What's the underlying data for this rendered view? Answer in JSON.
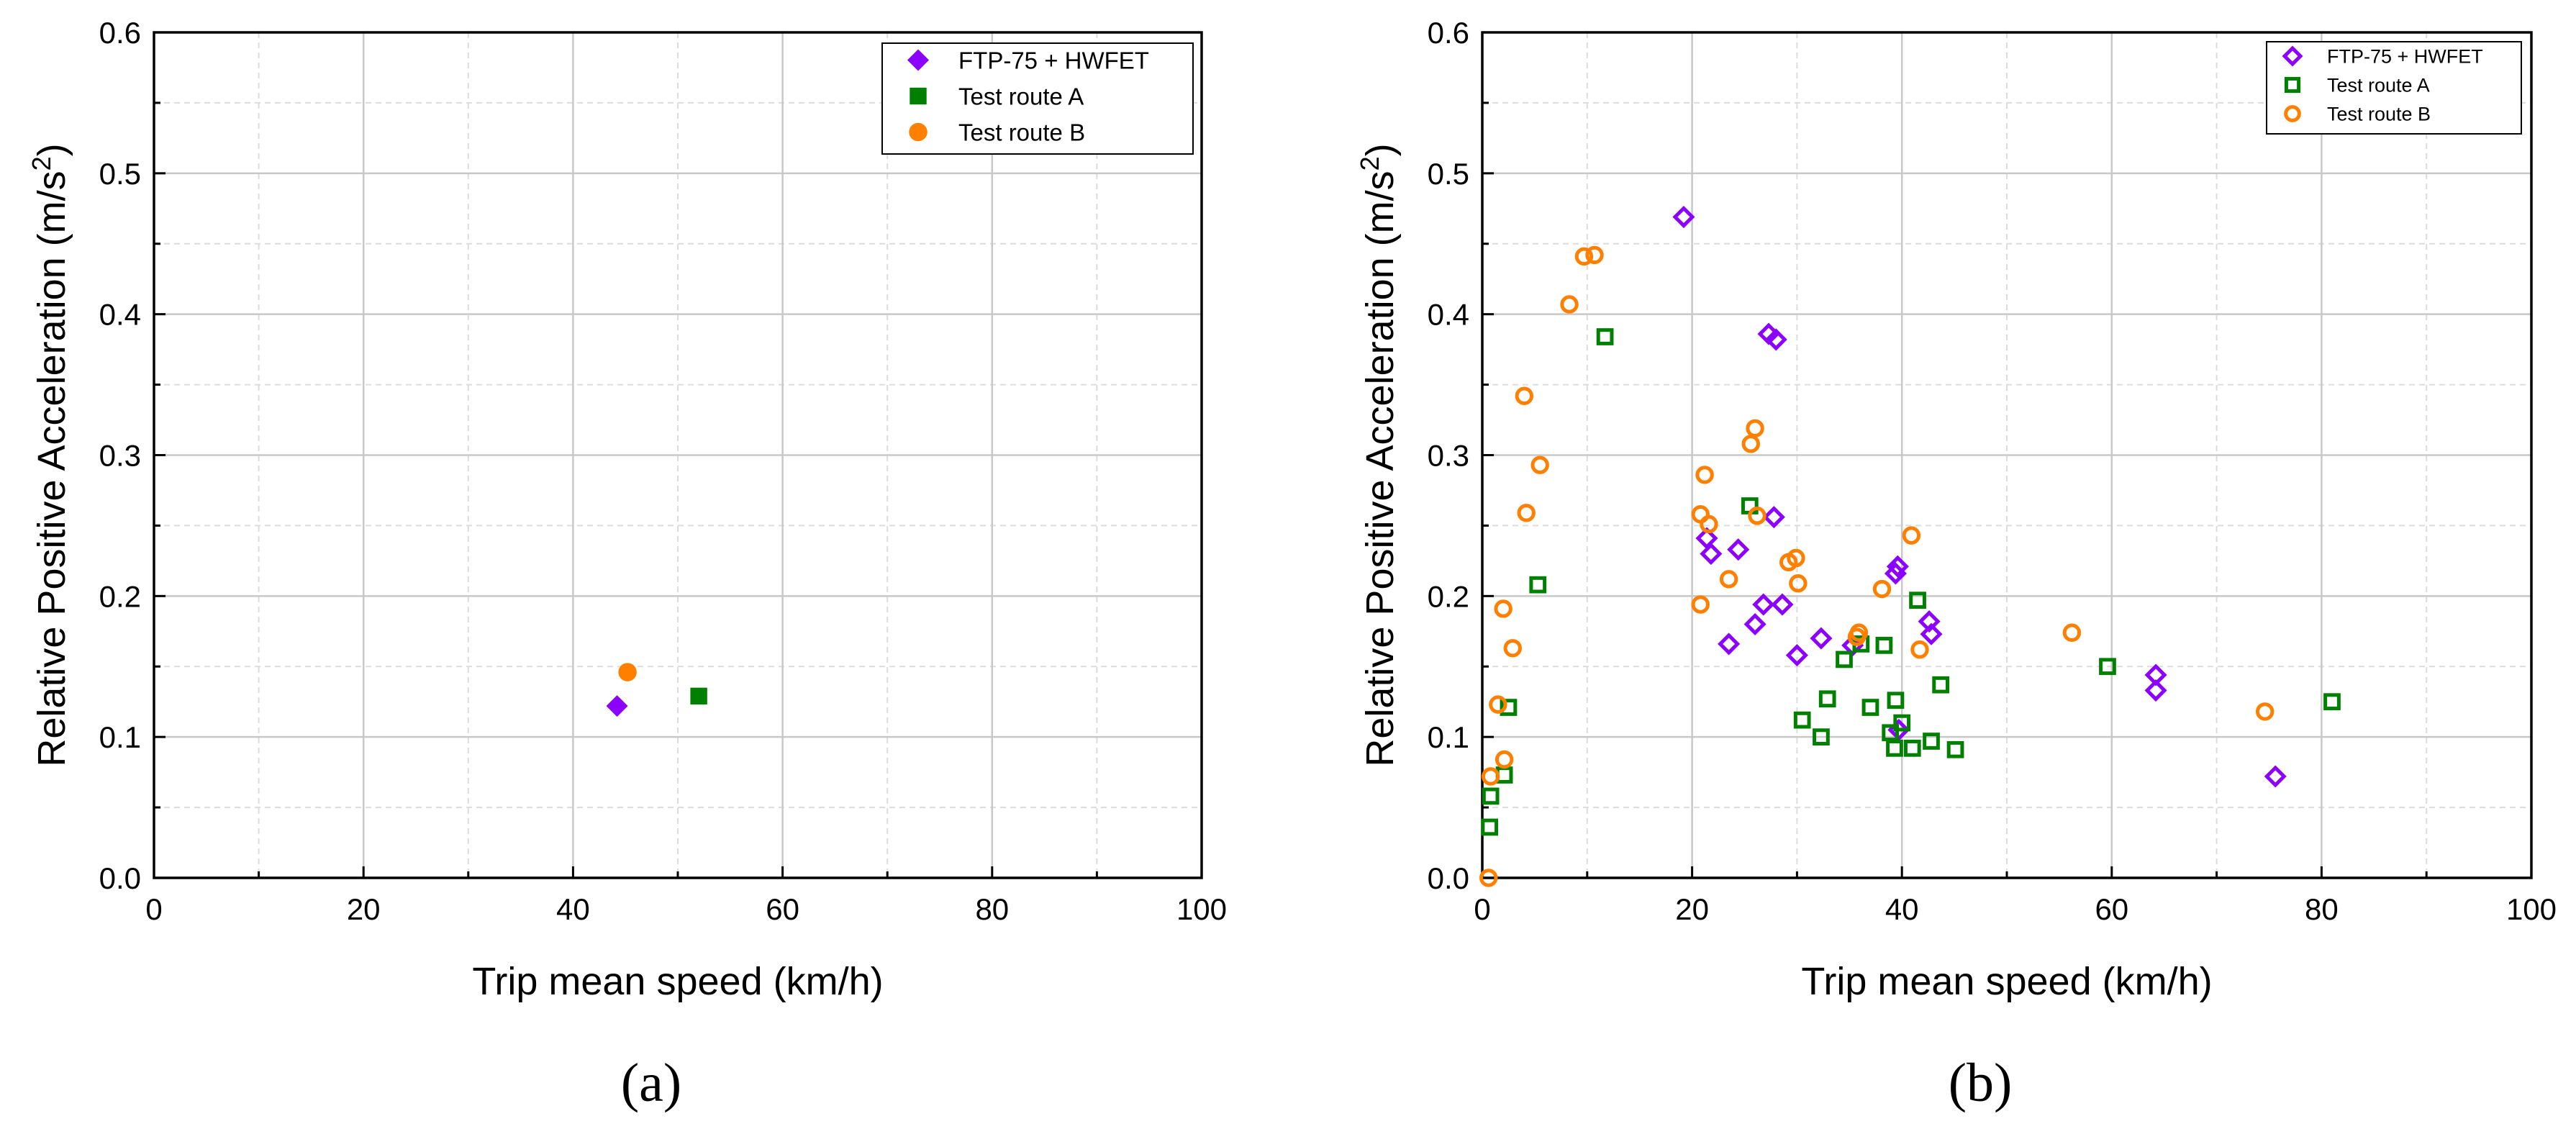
{
  "colors": {
    "ftp": "#8B00FF",
    "route_a": "#008000",
    "route_b": "#FF8000",
    "grid_major": "#c8c8c8",
    "grid_minor": "#dcdcdc"
  },
  "chart_data": [
    {
      "type": "scatter",
      "caption": "(a)",
      "xlabel": "Trip mean speed (km/h)",
      "ylabel": "Relative Positive Acceleration (m/s",
      "ylabel_sup": "2",
      "ylabel_close": ")",
      "xlim": [
        0,
        100
      ],
      "ylim": [
        0,
        0.6
      ],
      "xticks": [
        "0",
        "20",
        "40",
        "60",
        "80",
        "100"
      ],
      "yticks": [
        "0.0",
        "0.1",
        "0.2",
        "0.3",
        "0.4",
        "0.5",
        "0.6"
      ],
      "legend_position": "top-right",
      "marker_fill": "filled",
      "series": [
        {
          "name": "FTP-75 + HWFET",
          "marker": "diamond",
          "color": "#8B00FF",
          "points": [
            [
              44.2,
              0.122
            ]
          ]
        },
        {
          "name": "Test route A",
          "marker": "square",
          "color": "#008000",
          "points": [
            [
              52.0,
              0.129
            ]
          ]
        },
        {
          "name": "Test route B",
          "marker": "circle",
          "color": "#FF8000",
          "points": [
            [
              45.2,
              0.146
            ]
          ]
        }
      ]
    },
    {
      "type": "scatter",
      "caption": "(b)",
      "xlabel": "Trip mean speed (km/h)",
      "ylabel": "Relative Positive Acceleration (m/s",
      "ylabel_sup": "2",
      "ylabel_close": ")",
      "xlim": [
        0,
        100
      ],
      "ylim": [
        0,
        0.6
      ],
      "xticks": [
        "0",
        "20",
        "40",
        "60",
        "80",
        "100"
      ],
      "yticks": [
        "0.0",
        "0.1",
        "0.2",
        "0.3",
        "0.4",
        "0.5",
        "0.6"
      ],
      "legend_position": "top-right",
      "marker_fill": "hollow",
      "series": [
        {
          "name": "FTP-75 + HWFET",
          "marker": "diamond",
          "color": "#8B00FF",
          "points": [
            [
              19.2,
              0.469
            ],
            [
              27.3,
              0.386
            ],
            [
              28.0,
              0.382
            ],
            [
              27.8,
              0.256
            ],
            [
              21.4,
              0.241
            ],
            [
              21.8,
              0.23
            ],
            [
              24.4,
              0.233
            ],
            [
              26.8,
              0.194
            ],
            [
              28.6,
              0.194
            ],
            [
              26.0,
              0.18
            ],
            [
              23.5,
              0.166
            ],
            [
              32.3,
              0.17
            ],
            [
              35.3,
              0.165
            ],
            [
              30.0,
              0.158
            ],
            [
              39.6,
              0.221
            ],
            [
              39.4,
              0.216
            ],
            [
              42.6,
              0.182
            ],
            [
              42.8,
              0.173
            ],
            [
              39.7,
              0.105
            ],
            [
              64.2,
              0.144
            ],
            [
              64.2,
              0.133
            ],
            [
              75.6,
              0.072
            ]
          ]
        },
        {
          "name": "Test route A",
          "marker": "square",
          "color": "#008000",
          "points": [
            [
              11.7,
              0.384
            ],
            [
              25.5,
              0.264
            ],
            [
              5.3,
              0.208
            ],
            [
              2.5,
              0.121
            ],
            [
              2.1,
              0.073
            ],
            [
              0.8,
              0.058
            ],
            [
              0.7,
              0.036
            ],
            [
              34.5,
              0.155
            ],
            [
              36.1,
              0.166
            ],
            [
              38.3,
              0.165
            ],
            [
              41.5,
              0.197
            ],
            [
              43.7,
              0.137
            ],
            [
              30.5,
              0.112
            ],
            [
              32.9,
              0.127
            ],
            [
              32.3,
              0.1
            ],
            [
              37.0,
              0.121
            ],
            [
              39.4,
              0.126
            ],
            [
              40.0,
              0.11
            ],
            [
              38.9,
              0.103
            ],
            [
              39.3,
              0.092
            ],
            [
              41.0,
              0.092
            ],
            [
              42.8,
              0.097
            ],
            [
              45.1,
              0.091
            ],
            [
              59.6,
              0.15
            ],
            [
              81.0,
              0.125
            ]
          ]
        },
        {
          "name": "Test route B",
          "marker": "circle",
          "color": "#FF8000",
          "points": [
            [
              9.7,
              0.441
            ],
            [
              10.7,
              0.442
            ],
            [
              8.3,
              0.407
            ],
            [
              4.0,
              0.342
            ],
            [
              5.5,
              0.293
            ],
            [
              4.2,
              0.259
            ],
            [
              26.0,
              0.319
            ],
            [
              25.6,
              0.308
            ],
            [
              21.2,
              0.286
            ],
            [
              20.8,
              0.258
            ],
            [
              21.6,
              0.251
            ],
            [
              26.2,
              0.257
            ],
            [
              29.9,
              0.227
            ],
            [
              29.2,
              0.224
            ],
            [
              30.1,
              0.209
            ],
            [
              23.5,
              0.212
            ],
            [
              20.8,
              0.194
            ],
            [
              40.9,
              0.243
            ],
            [
              38.1,
              0.205
            ],
            [
              35.9,
              0.174
            ],
            [
              35.7,
              0.171
            ],
            [
              41.7,
              0.162
            ],
            [
              2.0,
              0.191
            ],
            [
              2.9,
              0.163
            ],
            [
              1.5,
              0.123
            ],
            [
              2.1,
              0.084
            ],
            [
              0.8,
              0.072
            ],
            [
              0.6,
              0.0
            ],
            [
              56.2,
              0.174
            ],
            [
              74.6,
              0.118
            ]
          ]
        }
      ]
    }
  ]
}
